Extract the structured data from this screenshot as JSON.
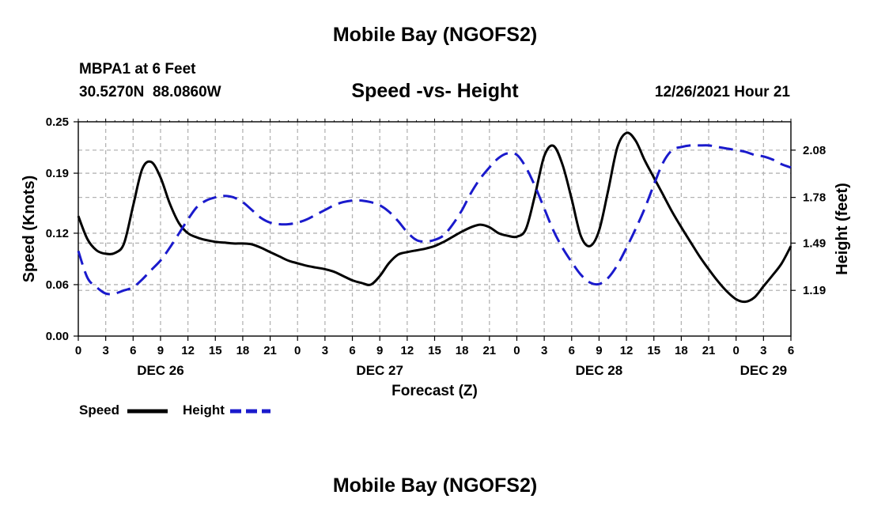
{
  "header": {
    "title": "Mobile Bay (NGOFS2)",
    "station": "MBPA1 at 6 Feet",
    "coords": "30.5270N  88.0860W",
    "datetime": "12/26/2021 Hour 21"
  },
  "footer": {
    "title": "Mobile Bay (NGOFS2)"
  },
  "colors": {
    "speed": "#000000",
    "height": "#1a1acc",
    "grid": "#b4b4b4"
  },
  "chart_data": {
    "type": "line",
    "title": "Speed -vs- Height",
    "xlabel": "Forecast (Z)",
    "ylabel": "Speed (Knots)",
    "y2label": "Height (feet)",
    "xlim": [
      0,
      78
    ],
    "ylim": [
      0,
      0.25
    ],
    "y2lim": [
      0.9,
      2.26
    ],
    "yticks": [
      0.0,
      0.06,
      0.12,
      0.19,
      0.25
    ],
    "ytick_labels": [
      "0.00",
      "0.06",
      "0.12",
      "0.19",
      "0.25"
    ],
    "y2ticks": [
      1.19,
      1.49,
      1.78,
      2.08
    ],
    "y2tick_labels": [
      "1.19",
      "1.49",
      "1.78",
      "2.08"
    ],
    "xticks": [
      0,
      3,
      6,
      9,
      12,
      15,
      18,
      21,
      24,
      27,
      30,
      33,
      36,
      39,
      42,
      45,
      48,
      51,
      54,
      57,
      60,
      63,
      66,
      69,
      72,
      75,
      78
    ],
    "xtick_labels": [
      "0",
      "3",
      "6",
      "9",
      "12",
      "15",
      "18",
      "21",
      "0",
      "3",
      "6",
      "9",
      "12",
      "15",
      "18",
      "21",
      "0",
      "3",
      "6",
      "9",
      "12",
      "15",
      "18",
      "21",
      "0",
      "3",
      "6"
    ],
    "day_labels": [
      {
        "x": 9,
        "label": "DEC 26"
      },
      {
        "x": 33,
        "label": "DEC 27"
      },
      {
        "x": 57,
        "label": "DEC 28"
      },
      {
        "x": 75,
        "label": "DEC 29"
      }
    ],
    "grid": true,
    "series": [
      {
        "name": "Speed",
        "axis": "left",
        "style": "solid",
        "x": [
          0,
          1,
          2,
          3,
          4,
          5,
          6,
          7,
          8,
          9,
          10,
          11,
          12,
          13,
          14,
          15,
          16,
          17,
          18,
          19,
          20,
          21,
          22,
          23,
          24,
          25,
          26,
          27,
          28,
          29,
          30,
          31,
          32,
          33,
          34,
          35,
          36,
          37,
          38,
          39,
          40,
          41,
          42,
          43,
          44,
          45,
          46,
          47,
          48,
          49,
          50,
          51,
          52,
          53,
          54,
          55,
          56,
          57,
          58,
          59,
          60,
          61,
          62,
          63,
          64,
          65,
          66,
          67,
          68,
          69,
          70,
          71,
          72,
          73,
          74,
          75,
          76,
          77,
          78
        ],
        "values": [
          0.14,
          0.113,
          0.1,
          0.096,
          0.097,
          0.108,
          0.152,
          0.195,
          0.203,
          0.185,
          0.155,
          0.132,
          0.12,
          0.115,
          0.112,
          0.11,
          0.109,
          0.108,
          0.108,
          0.107,
          0.103,
          0.098,
          0.093,
          0.088,
          0.085,
          0.082,
          0.08,
          0.078,
          0.075,
          0.07,
          0.065,
          0.062,
          0.06,
          0.07,
          0.085,
          0.095,
          0.098,
          0.1,
          0.102,
          0.105,
          0.11,
          0.116,
          0.122,
          0.127,
          0.13,
          0.127,
          0.12,
          0.117,
          0.116,
          0.125,
          0.165,
          0.21,
          0.222,
          0.2,
          0.16,
          0.117,
          0.105,
          0.123,
          0.17,
          0.22,
          0.237,
          0.228,
          0.205,
          0.185,
          0.165,
          0.145,
          0.127,
          0.11,
          0.093,
          0.078,
          0.064,
          0.052,
          0.043,
          0.04,
          0.045,
          0.058,
          0.071,
          0.085,
          0.105
        ]
      },
      {
        "name": "Height",
        "axis": "right",
        "style": "dashed",
        "x": [
          0,
          1,
          2,
          3,
          4,
          5,
          6,
          7,
          8,
          9,
          10,
          11,
          12,
          13,
          14,
          15,
          16,
          17,
          18,
          19,
          20,
          21,
          22,
          23,
          24,
          25,
          26,
          27,
          28,
          29,
          30,
          31,
          32,
          33,
          34,
          35,
          36,
          37,
          38,
          39,
          40,
          41,
          42,
          43,
          44,
          45,
          46,
          47,
          48,
          49,
          50,
          51,
          52,
          53,
          54,
          55,
          56,
          57,
          58,
          59,
          60,
          61,
          62,
          63,
          64,
          65,
          66,
          67,
          68,
          69,
          70,
          71,
          72,
          73,
          74,
          75,
          76,
          77,
          78
        ],
        "values": [
          1.44,
          1.27,
          1.21,
          1.17,
          1.17,
          1.19,
          1.21,
          1.26,
          1.32,
          1.38,
          1.46,
          1.55,
          1.64,
          1.72,
          1.76,
          1.78,
          1.79,
          1.78,
          1.75,
          1.7,
          1.65,
          1.62,
          1.61,
          1.61,
          1.62,
          1.64,
          1.67,
          1.7,
          1.73,
          1.75,
          1.76,
          1.76,
          1.75,
          1.73,
          1.69,
          1.63,
          1.56,
          1.51,
          1.5,
          1.51,
          1.54,
          1.61,
          1.7,
          1.81,
          1.9,
          1.97,
          2.03,
          2.06,
          2.05,
          1.97,
          1.85,
          1.71,
          1.57,
          1.46,
          1.37,
          1.29,
          1.24,
          1.23,
          1.27,
          1.35,
          1.46,
          1.58,
          1.71,
          1.86,
          2.0,
          2.08,
          2.1,
          2.11,
          2.11,
          2.11,
          2.1,
          2.09,
          2.08,
          2.07,
          2.05,
          2.04,
          2.02,
          1.99,
          1.97
        ]
      }
    ],
    "legend": [
      {
        "name": "Speed",
        "label": "Speed"
      },
      {
        "name": "Height",
        "label": "Height"
      }
    ],
    "legend_position": "bottom-left"
  }
}
